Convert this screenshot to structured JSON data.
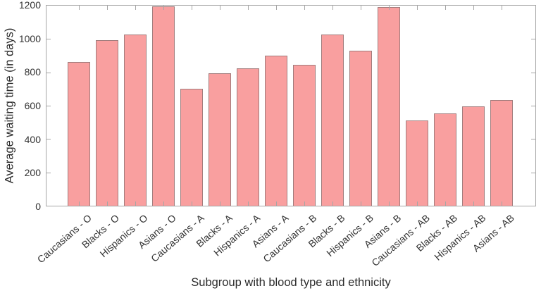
{
  "chart_data": {
    "type": "bar",
    "title": "",
    "xlabel": "Subgroup with blood type and ethnicity",
    "ylabel": "Average waiting time (in days)",
    "categories": [
      "Caucasians - O",
      "Blacks - O",
      "Hispanics - O",
      "Asians - O",
      "Caucasians - A",
      "Blacks - A",
      "Hispanics - A",
      "Asians - A",
      "Caucasians - B",
      "Blacks - B",
      "Hispanics - B",
      "Asians - B",
      "Caucasians - AB",
      "Blacks - AB",
      "Hispanics - AB",
      "Asians - AB"
    ],
    "values": [
      860,
      995,
      1025,
      1195,
      700,
      795,
      825,
      900,
      845,
      1025,
      930,
      1190,
      510,
      555,
      595,
      635
    ],
    "ylim": [
      0,
      1200
    ],
    "yticks": [
      0,
      200,
      400,
      600,
      800,
      1000,
      1200
    ],
    "grid": false,
    "legend": null,
    "colors": {
      "bar_fill": "#f99f9f",
      "bar_edge": "#a17c7c",
      "axis_frame": "#a6a6a6",
      "tick_text": "#333333",
      "label_text": "#2b2b2b"
    }
  }
}
